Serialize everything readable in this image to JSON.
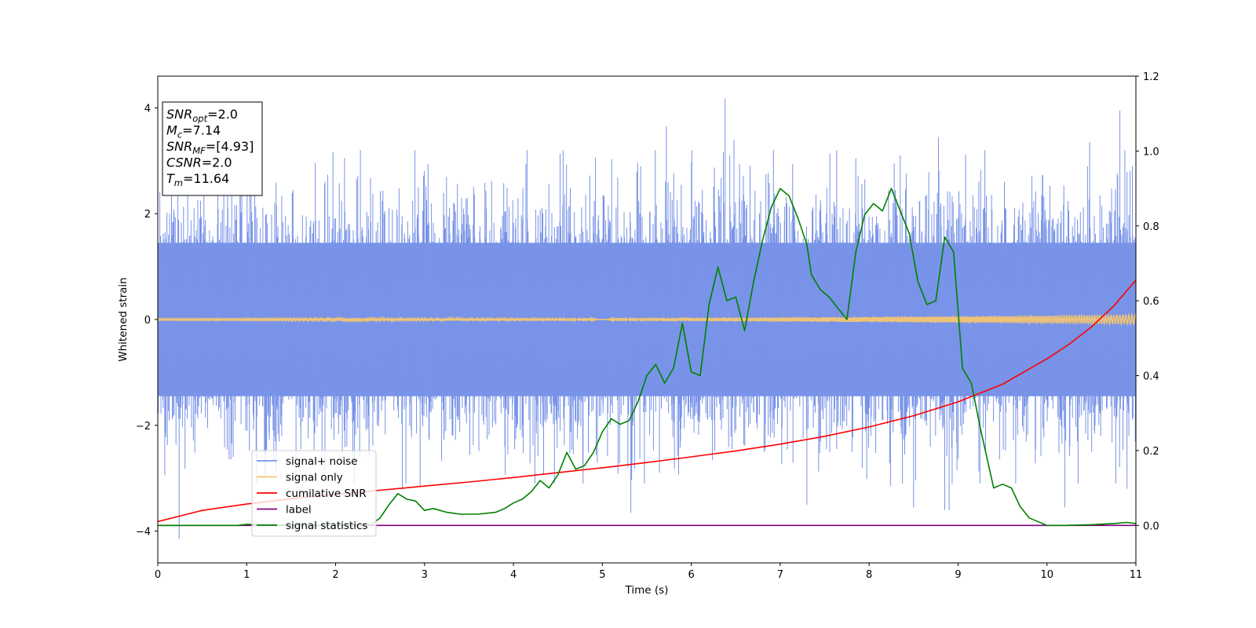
{
  "chart_data": {
    "type": "line",
    "xlabel": "Time (s)",
    "ylabel_left": "Whitened strain",
    "ylabel_right": "",
    "xlim": [
      0,
      11
    ],
    "ylim_left": [
      -4.6,
      4.6
    ],
    "ylim_right": [
      -0.1,
      1.2
    ],
    "xticks": [
      "0",
      "1",
      "2",
      "3",
      "4",
      "5",
      "6",
      "7",
      "8",
      "9",
      "10",
      "11"
    ],
    "yticks_left": [
      "−4",
      "−2",
      "0",
      "2",
      "4"
    ],
    "yticks_right": [
      "0.0",
      "0.2",
      "0.4",
      "0.6",
      "0.8",
      "1.0",
      "1.2"
    ],
    "grid": false,
    "legend_position": "lower-left",
    "info_box": {
      "lines": [
        {
          "sym": "SNR",
          "sub": "opt",
          "value": "=2.0"
        },
        {
          "sym": "M",
          "sub": "c",
          "value": "=7.14"
        },
        {
          "sym": "SNR",
          "sub": "MF",
          "value": "=[4.93]"
        },
        {
          "sym": "CSNR",
          "sub": "",
          "value": "=2.0"
        },
        {
          "sym": "T",
          "sub": "m",
          "value": "=11.64"
        }
      ]
    },
    "series": [
      {
        "name": "signal+ noise",
        "axis": "left",
        "color": "#7893e8",
        "kind": "noise-band",
        "band_half_width": 1.45,
        "extreme_spikes": [
          {
            "x": 0.24,
            "y": -4.15
          },
          {
            "x": 1.05,
            "y": 3.3
          },
          {
            "x": 2.1,
            "y": 3.05
          },
          {
            "x": 2.75,
            "y": -3.2
          },
          {
            "x": 2.95,
            "y": -3.15
          },
          {
            "x": 5.32,
            "y": -3.65
          },
          {
            "x": 5.72,
            "y": 3.65
          },
          {
            "x": 6.38,
            "y": 4.18
          },
          {
            "x": 6.48,
            "y": 3.4
          },
          {
            "x": 7.3,
            "y": -3.5
          },
          {
            "x": 8.24,
            "y": -3.15
          },
          {
            "x": 8.5,
            "y": -3.55
          },
          {
            "x": 8.78,
            "y": 3.45
          },
          {
            "x": 8.85,
            "y": -3.6
          },
          {
            "x": 8.9,
            "y": -3.6
          },
          {
            "x": 10.2,
            "y": -3.55
          },
          {
            "x": 10.48,
            "y": 3.35
          },
          {
            "x": 10.82,
            "y": 3.95
          },
          {
            "x": 10.9,
            "y": -3.2
          },
          {
            "x": 10.96,
            "y": 2.9
          }
        ]
      },
      {
        "name": "signal only",
        "axis": "left",
        "color": "#f4c571",
        "kind": "chirp",
        "amplitude_start": 0.02,
        "amplitude_end": 0.09
      },
      {
        "name": "cumilative SNR",
        "axis": "right",
        "color": "#ff0000",
        "kind": "line",
        "x": [
          0,
          0.5,
          1,
          1.5,
          2,
          2.5,
          3,
          3.5,
          4,
          4.5,
          5,
          5.5,
          6,
          6.5,
          7,
          7.5,
          8,
          8.5,
          9,
          9.5,
          10,
          10.25,
          10.5,
          10.75,
          11
        ],
        "y": [
          0.01,
          0.04,
          0.057,
          0.071,
          0.083,
          0.094,
          0.105,
          0.116,
          0.128,
          0.141,
          0.154,
          0.168,
          0.183,
          0.199,
          0.217,
          0.238,
          0.263,
          0.293,
          0.33,
          0.377,
          0.445,
          0.484,
          0.53,
          0.586,
          0.655
        ]
      },
      {
        "name": "label",
        "axis": "right",
        "color": "#800080",
        "kind": "line",
        "x": [
          0,
          11
        ],
        "y": [
          0,
          0
        ]
      },
      {
        "name": "signal statistics",
        "axis": "right",
        "color": "#008000",
        "kind": "line",
        "x": [
          0,
          0.5,
          0.9,
          1,
          1.5,
          2,
          2.4,
          2.5,
          2.6,
          2.7,
          2.8,
          2.9,
          3.0,
          3.1,
          3.25,
          3.4,
          3.6,
          3.8,
          3.9,
          4.0,
          4.1,
          4.2,
          4.3,
          4.4,
          4.5,
          4.6,
          4.7,
          4.8,
          4.9,
          5.0,
          5.1,
          5.2,
          5.3,
          5.4,
          5.5,
          5.6,
          5.7,
          5.8,
          5.9,
          6.0,
          6.1,
          6.2,
          6.3,
          6.4,
          6.5,
          6.6,
          6.7,
          6.8,
          6.9,
          7.0,
          7.1,
          7.2,
          7.3,
          7.35,
          7.45,
          7.55,
          7.65,
          7.75,
          7.85,
          7.95,
          8.05,
          8.15,
          8.25,
          8.35,
          8.45,
          8.55,
          8.65,
          8.75,
          8.85,
          8.95,
          9.05,
          9.15,
          9.25,
          9.4,
          9.5,
          9.6,
          9.7,
          9.8,
          10,
          10.2,
          10.5,
          10.75,
          10.9,
          11
        ],
        "y": [
          0.0,
          0.0,
          0.0,
          0.003,
          0.0,
          0.0,
          0.002,
          0.02,
          0.055,
          0.085,
          0.07,
          0.065,
          0.04,
          0.045,
          0.035,
          0.03,
          0.03,
          0.035,
          0.045,
          0.06,
          0.07,
          0.09,
          0.12,
          0.1,
          0.135,
          0.195,
          0.15,
          0.16,
          0.195,
          0.25,
          0.285,
          0.27,
          0.28,
          0.33,
          0.4,
          0.43,
          0.38,
          0.42,
          0.54,
          0.41,
          0.4,
          0.59,
          0.69,
          0.6,
          0.61,
          0.52,
          0.65,
          0.76,
          0.85,
          0.9,
          0.88,
          0.82,
          0.75,
          0.67,
          0.63,
          0.61,
          0.58,
          0.55,
          0.73,
          0.83,
          0.86,
          0.84,
          0.9,
          0.84,
          0.78,
          0.65,
          0.59,
          0.6,
          0.77,
          0.73,
          0.42,
          0.38,
          0.26,
          0.1,
          0.11,
          0.1,
          0.05,
          0.02,
          0.0,
          0.0,
          0.002,
          0.005,
          0.008,
          0.005
        ]
      }
    ]
  }
}
